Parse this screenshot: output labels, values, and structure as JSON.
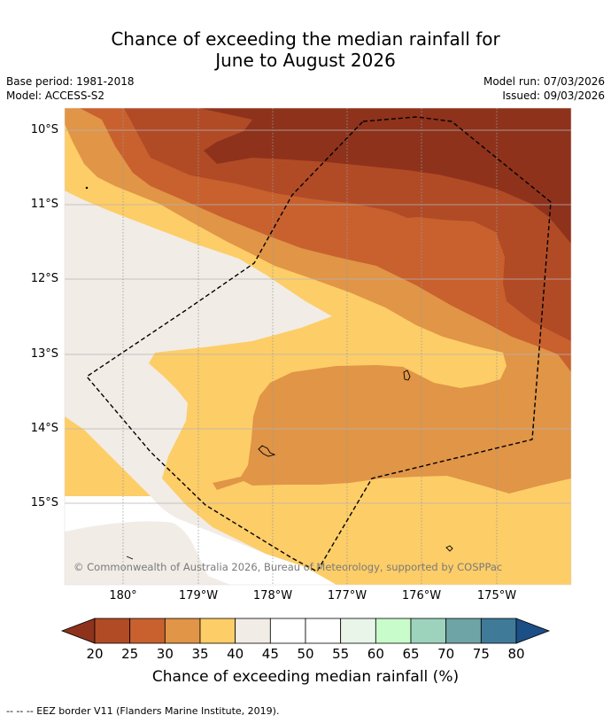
{
  "title": {
    "line1": "Chance of exceeding the median rainfall for",
    "line2": "June to August 2026"
  },
  "meta": {
    "base_period": "Base period: 1981-2018",
    "model": "Model: ACCESS-S2",
    "model_run": "Model run: 07/03/2026",
    "issued": "Issued: 09/03/2026"
  },
  "map": {
    "lat_labels": [
      "10°S",
      "11°S",
      "12°S",
      "13°S",
      "14°S",
      "15°S"
    ],
    "lon_labels": [
      "180°",
      "179°W",
      "178°W",
      "177°W",
      "176°W",
      "175°W"
    ],
    "copyright": "© Commonwealth of Australia 2026, Bureau of Meteorology, supported by COSPPac",
    "colors": {
      "c20_25": "#b14b26",
      "c25_30": "#c8612e",
      "c30_35": "#e09547",
      "c35_40": "#fdcd67",
      "c40_45": "#f1ece6",
      "c45_55": "#ffffff",
      "under20": "#8e321c"
    }
  },
  "colorbar": {
    "ticks": [
      "20",
      "25",
      "30",
      "35",
      "40",
      "45",
      "50",
      "55",
      "60",
      "65",
      "70",
      "75",
      "80"
    ],
    "colors": [
      "#b14b26",
      "#c8612e",
      "#e09547",
      "#fdcd67",
      "#f1ece6",
      "#ffffff",
      "#ffffff",
      "#e9f5e8",
      "#c8fcca",
      "#9dd3bd",
      "#6ea4a5",
      "#3f7a98"
    ],
    "low_color": "#8e321c",
    "high_color": "#1b4f86",
    "label": "Chance of exceeding median rainfall (%)"
  },
  "footnote": "--  --  -- EEZ border V11 (Flanders Marine Institute, 2019)."
}
